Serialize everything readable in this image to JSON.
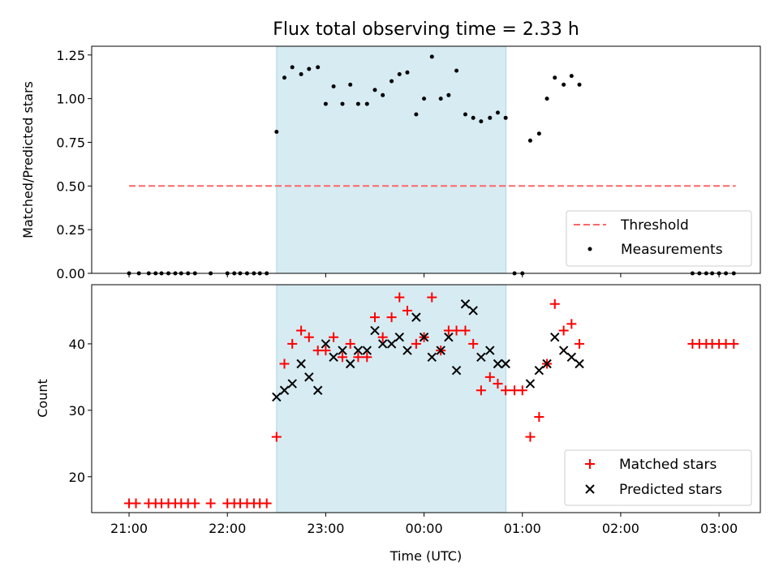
{
  "chart_data": {
    "title": "Flux total observing time = 2.33 h",
    "xlabel": "Time (UTC)",
    "x_unit": "hours (UTC)",
    "xlim": [
      20.62,
      27.42
    ],
    "xticks": [
      {
        "label": "21:00",
        "value": 21
      },
      {
        "label": "22:00",
        "value": 22
      },
      {
        "label": "23:00",
        "value": 23
      },
      {
        "label": "00:00",
        "value": 24
      },
      {
        "label": "01:00",
        "value": 25
      },
      {
        "label": "02:00",
        "value": 26
      },
      {
        "label": "03:00",
        "value": 27
      }
    ],
    "shaded_region": {
      "x": [
        22.5,
        24.833
      ],
      "color": "#add8e6"
    },
    "colors": {
      "threshold": "#ff6666",
      "measurements": "#000000",
      "matched": "#ff0000",
      "predicted": "#000000"
    },
    "panels": [
      {
        "type": "scatter",
        "ylabel": "Matched/Predicted stars",
        "ylim": [
          0,
          1.3
        ],
        "yticks": [
          "0.00",
          "0.25",
          "0.50",
          "0.75",
          "1.00",
          "1.25"
        ],
        "legend_position": "lower-right",
        "series": [
          {
            "name": "Threshold",
            "style": "dashed-line",
            "x": [
              21.0,
              27.17
            ],
            "y": [
              0.5,
              0.5
            ]
          },
          {
            "name": "Measurements",
            "style": "dot",
            "x": [
              21.0,
              21.1,
              21.2,
              21.27,
              21.33,
              21.4,
              21.47,
              21.53,
              21.6,
              21.67,
              21.83,
              22.0,
              22.07,
              22.13,
              22.2,
              22.27,
              22.33,
              22.4,
              22.5,
              22.58,
              22.66,
              22.75,
              22.83,
              22.92,
              23.0,
              23.08,
              23.17,
              23.25,
              23.33,
              23.42,
              23.5,
              23.58,
              23.67,
              23.75,
              23.83,
              23.92,
              24.0,
              24.08,
              24.17,
              24.25,
              24.33,
              24.42,
              24.5,
              24.58,
              24.67,
              24.75,
              24.83,
              24.92,
              25.0,
              25.08,
              25.17,
              25.25,
              25.33,
              25.42,
              25.5,
              25.58,
              26.73,
              26.8,
              26.87,
              26.93,
              27.0,
              27.07,
              27.15
            ],
            "y": [
              0,
              0,
              0,
              0,
              0,
              0,
              0,
              0,
              0,
              0,
              0,
              0,
              0,
              0,
              0,
              0,
              0,
              0,
              0.81,
              1.12,
              1.18,
              1.14,
              1.17,
              1.18,
              0.97,
              1.07,
              0.97,
              1.08,
              0.97,
              0.97,
              1.05,
              1.02,
              1.1,
              1.14,
              1.15,
              0.91,
              1.0,
              1.24,
              1.0,
              1.02,
              1.16,
              0.91,
              0.89,
              0.87,
              0.89,
              0.92,
              0.89,
              0,
              0,
              0.76,
              0.8,
              1.0,
              1.12,
              1.08,
              1.13,
              1.08,
              0,
              0,
              0,
              0,
              0,
              0,
              0
            ]
          }
        ]
      },
      {
        "type": "scatter",
        "ylabel": "Count",
        "ylim": [
          14.6,
          48.9
        ],
        "yticks": [
          "20",
          "30",
          "40"
        ],
        "legend_position": "lower-right",
        "series": [
          {
            "name": "Matched stars",
            "marker": "+",
            "x": [
              21.0,
              21.07,
              21.2,
              21.27,
              21.33,
              21.4,
              21.47,
              21.53,
              21.6,
              21.67,
              21.83,
              22.0,
              22.07,
              22.13,
              22.2,
              22.27,
              22.33,
              22.4,
              22.5,
              22.58,
              22.66,
              22.75,
              22.83,
              22.92,
              23.0,
              23.08,
              23.17,
              23.25,
              23.33,
              23.42,
              23.5,
              23.58,
              23.67,
              23.75,
              23.83,
              23.92,
              24.0,
              24.08,
              24.17,
              24.25,
              24.33,
              24.42,
              24.5,
              24.58,
              24.67,
              24.75,
              24.83,
              24.92,
              25.0,
              25.08,
              25.17,
              25.25,
              25.33,
              25.42,
              25.5,
              25.58,
              26.73,
              26.8,
              26.87,
              26.93,
              27.0,
              27.07,
              27.15
            ],
            "y": [
              16,
              16,
              16,
              16,
              16,
              16,
              16,
              16,
              16,
              16,
              16,
              16,
              16,
              16,
              16,
              16,
              16,
              16,
              26,
              37,
              40,
              42,
              41,
              39,
              39,
              41,
              38,
              40,
              38,
              38,
              44,
              41,
              44,
              47,
              45,
              40,
              41,
              47,
              39,
              42,
              42,
              42,
              40,
              33,
              35,
              34,
              33,
              33,
              33,
              26,
              29,
              37,
              46,
              42,
              43,
              40,
              40,
              40,
              40,
              40,
              40,
              40,
              40
            ]
          },
          {
            "name": "Predicted stars",
            "marker": "x",
            "x": [
              22.5,
              22.58,
              22.66,
              22.75,
              22.83,
              22.92,
              23.0,
              23.08,
              23.17,
              23.25,
              23.33,
              23.42,
              23.5,
              23.58,
              23.67,
              23.75,
              23.83,
              23.92,
              24.0,
              24.08,
              24.17,
              24.25,
              24.33,
              24.42,
              24.5,
              24.58,
              24.67,
              24.75,
              24.83,
              25.08,
              25.17,
              25.25,
              25.33,
              25.42,
              25.5,
              25.58
            ],
            "y": [
              32,
              33,
              34,
              37,
              35,
              33,
              40,
              38,
              39,
              37,
              39,
              39,
              42,
              40,
              40,
              41,
              39,
              44,
              41,
              38,
              39,
              41,
              36,
              46,
              45,
              38,
              39,
              37,
              37,
              34,
              36,
              37,
              41,
              39,
              38,
              37
            ]
          }
        ]
      }
    ]
  }
}
